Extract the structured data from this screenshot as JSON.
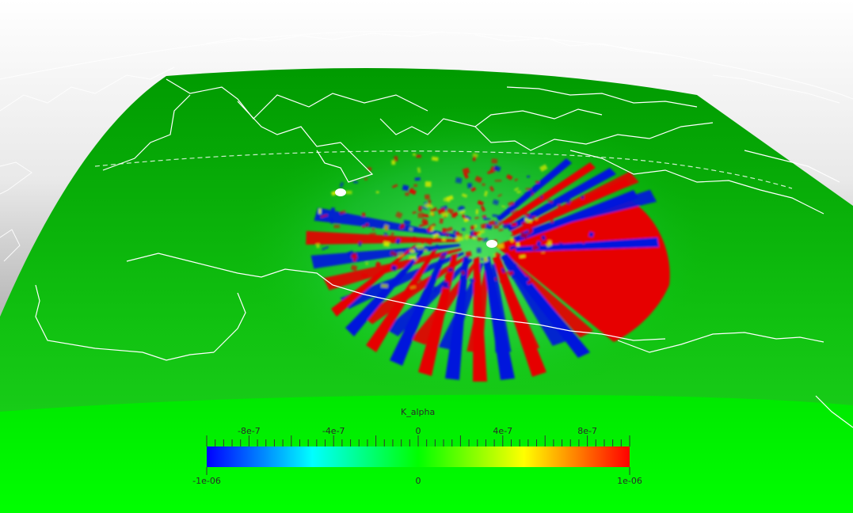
{
  "colorbar": {
    "title": "K_alpha",
    "top_ticks": [
      "-8e-7",
      "-4e-7",
      "0",
      "4e-7",
      "8e-7"
    ],
    "top_tick_values": [
      -8e-07,
      -4e-07,
      0,
      4e-07,
      8e-07
    ],
    "bottom_labels": [
      "-1e-06",
      "0",
      "1e-06"
    ],
    "bottom_label_values": [
      -1e-06,
      0,
      1e-06
    ],
    "range": [
      -1e-06,
      1e-06
    ],
    "colormap": [
      "#0000ff",
      "#00ffff",
      "#00ff00",
      "#ffff00",
      "#ff0000"
    ]
  },
  "colors": {
    "surface_green": "#00c800",
    "surface_near_green": "#00f000",
    "positive_red": "#e60000",
    "negative_blue": "#0014dc",
    "coastline": "#ffffff",
    "station_marker": "#ffffff"
  },
  "markers": [
    "source-marker",
    "receiver-marker"
  ]
}
